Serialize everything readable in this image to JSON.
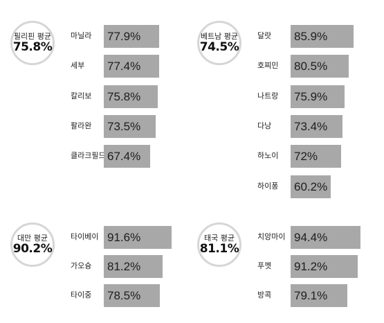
{
  "chart_data": [
    {
      "type": "bar",
      "summary_label": "필리핀 평균",
      "summary_value": "75.8%",
      "categories": [
        "마닐라",
        "세부",
        "칼리보",
        "팔라완",
        "클라크필드"
      ],
      "values": [
        77.9,
        77.4,
        75.8,
        73.5,
        67.4
      ],
      "value_labels": [
        "77.9%",
        "77.4%",
        "75.8%",
        "73.5%",
        "67.4%"
      ]
    },
    {
      "type": "bar",
      "summary_label": "베트남 평균",
      "summary_value": "74.5%",
      "categories": [
        "달랏",
        "호찌민",
        "나트랑",
        "다낭",
        "하노이",
        "하이퐁"
      ],
      "values": [
        85.9,
        80.5,
        75.9,
        73.4,
        72,
        60.2
      ],
      "value_labels": [
        "85.9%",
        "80.5%",
        "75.9%",
        "73.4%",
        "72%",
        "60.2%"
      ]
    },
    {
      "type": "bar",
      "summary_label": "대만 평균",
      "summary_value": "90.2%",
      "categories": [
        "타이베이",
        "가오슝",
        "타이중"
      ],
      "values": [
        91.6,
        81.2,
        78.5
      ],
      "value_labels": [
        "91.6%",
        "81.2%",
        "78.5%"
      ]
    },
    {
      "type": "bar",
      "summary_label": "태국 평균",
      "summary_value": "81.1%",
      "categories": [
        "치앙마이",
        "푸껫",
        "방콕"
      ],
      "values": [
        94.4,
        91.2,
        79.1
      ],
      "value_labels": [
        "94.4%",
        "91.2%",
        "79.1%"
      ]
    }
  ],
  "colors": {
    "bar": "#a8a8a8",
    "badge_border": "#d6d6d6",
    "text": "#222222"
  }
}
